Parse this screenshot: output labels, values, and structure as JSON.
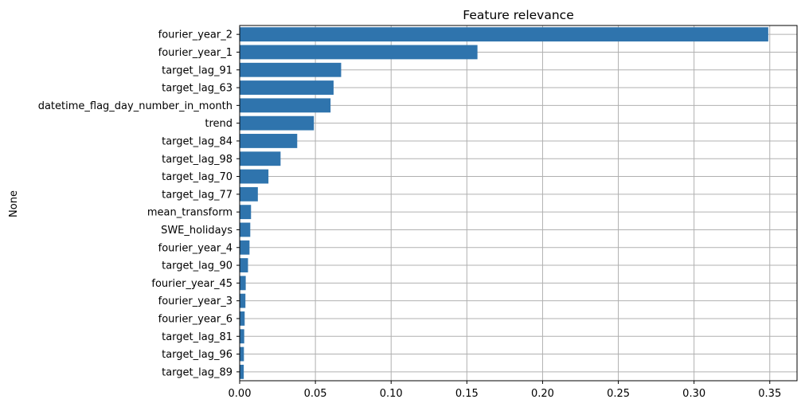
{
  "chart_data": {
    "type": "bar",
    "orientation": "horizontal",
    "title": "Feature relevance",
    "xlabel": "",
    "ylabel": "None",
    "xlim": [
      0,
      0.368
    ],
    "xticks": [
      0.0,
      0.05,
      0.1,
      0.15,
      0.2,
      0.25,
      0.3,
      0.35
    ],
    "xtick_labels": [
      "0.00",
      "0.05",
      "0.10",
      "0.15",
      "0.20",
      "0.25",
      "0.30",
      "0.35"
    ],
    "grid": true,
    "bar_color": "#2f74ad",
    "grid_color": "#b0b0b0",
    "categories": [
      "fourier_year_2",
      "fourier_year_1",
      "target_lag_91",
      "target_lag_63",
      "datetime_flag_day_number_in_month",
      "trend",
      "target_lag_84",
      "target_lag_98",
      "target_lag_70",
      "target_lag_77",
      "mean_transform",
      "SWE_holidays",
      "fourier_year_4",
      "target_lag_90",
      "fourier_year_45",
      "fourier_year_3",
      "fourier_year_6",
      "target_lag_81",
      "target_lag_96",
      "target_lag_89"
    ],
    "values": [
      0.349,
      0.157,
      0.067,
      0.062,
      0.06,
      0.049,
      0.038,
      0.027,
      0.019,
      0.012,
      0.0075,
      0.007,
      0.0065,
      0.0055,
      0.004,
      0.0038,
      0.0033,
      0.003,
      0.0028,
      0.0027
    ]
  }
}
